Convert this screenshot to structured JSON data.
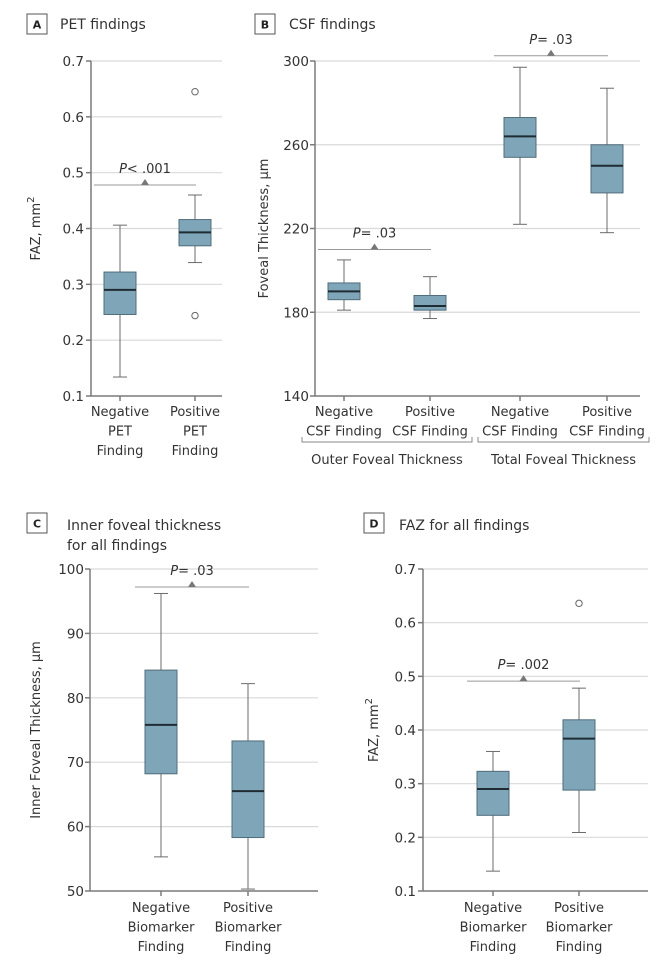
{
  "chart_data": [
    {
      "panel": "A",
      "type": "box",
      "title": "PET findings",
      "ylabel": "FAZ, mm²",
      "ylim": [
        0.1,
        0.7
      ],
      "yticks": [
        "0.1",
        "0.2",
        "0.3",
        "0.4",
        "0.5",
        "0.6",
        "0.7"
      ],
      "grid": true,
      "categories": [
        [
          "Negative",
          "PET",
          "Finding"
        ],
        [
          "Positive",
          "PET",
          "Finding"
        ]
      ],
      "boxes": [
        {
          "whisker_low": 0.134,
          "q1": 0.246,
          "median": 0.29,
          "q3": 0.322,
          "whisker_high": 0.406,
          "outliers": []
        },
        {
          "whisker_low": 0.339,
          "q1": 0.369,
          "median": 0.393,
          "q3": 0.416,
          "whisker_high": 0.46,
          "outliers": [
            0.645,
            0.244
          ]
        }
      ],
      "comparisons": [
        {
          "between": [
            0,
            1
          ],
          "p_prefix": "P",
          "p_text": "< .001",
          "y": 0.478
        }
      ]
    },
    {
      "panel": "B",
      "type": "box",
      "title": "CSF findings",
      "ylabel": "Foveal Thickness, µm",
      "ylim": [
        140,
        300
      ],
      "yticks": [
        "140",
        "180",
        "220",
        "260",
        "300"
      ],
      "grid": true,
      "categories": [
        [
          "Negative",
          "CSF Finding"
        ],
        [
          "Positive",
          "CSF Finding"
        ],
        [
          "Negative",
          "CSF Finding"
        ],
        [
          "Positive",
          "CSF Finding"
        ]
      ],
      "groups": [
        {
          "label": "Outer Foveal Thickness",
          "members": [
            0,
            1
          ]
        },
        {
          "label": "Total Foveal Thickness",
          "members": [
            2,
            3
          ]
        }
      ],
      "boxes": [
        {
          "whisker_low": 181,
          "q1": 186,
          "median": 190,
          "q3": 194,
          "whisker_high": 205,
          "outliers": []
        },
        {
          "whisker_low": 177,
          "q1": 181,
          "median": 183,
          "q3": 188,
          "whisker_high": 197,
          "outliers": []
        },
        {
          "whisker_low": 222,
          "q1": 254,
          "median": 264,
          "q3": 273,
          "whisker_high": 297,
          "outliers": []
        },
        {
          "whisker_low": 218,
          "q1": 237,
          "median": 250,
          "q3": 260,
          "whisker_high": 287,
          "outliers": []
        }
      ],
      "comparisons": [
        {
          "between": [
            0,
            1
          ],
          "p_prefix": "P",
          "p_text": "= .03",
          "y": 210
        },
        {
          "between": [
            2,
            3
          ],
          "p_prefix": "P",
          "p_text": "= .03",
          "y": 302.5
        }
      ]
    },
    {
      "panel": "C",
      "type": "box",
      "title": "Inner foveal thickness for all findings",
      "title_lines": [
        "Inner foveal thickness",
        "for all findings"
      ],
      "ylabel": "Inner Foveal Thickness, µm",
      "ylim": [
        50,
        100
      ],
      "yticks": [
        "50",
        "60",
        "70",
        "80",
        "90",
        "100"
      ],
      "grid": true,
      "categories": [
        [
          "Negative",
          "Biomarker",
          "Finding"
        ],
        [
          "Positive",
          "Biomarker",
          "Finding"
        ]
      ],
      "boxes": [
        {
          "whisker_low": 55.3,
          "q1": 68.2,
          "median": 75.8,
          "q3": 84.3,
          "whisker_high": 96.2,
          "outliers": []
        },
        {
          "whisker_low": 50.3,
          "q1": 58.3,
          "median": 65.5,
          "q3": 73.3,
          "whisker_high": 82.2,
          "outliers": []
        }
      ],
      "comparisons": [
        {
          "between": [
            0,
            1
          ],
          "p_prefix": "P",
          "p_text": "= .03",
          "y": 97.2
        }
      ]
    },
    {
      "panel": "D",
      "type": "box",
      "title": "FAZ for all findings",
      "ylabel": "FAZ, mm²",
      "ylim": [
        0.1,
        0.7
      ],
      "yticks": [
        "0.1",
        "0.2",
        "0.3",
        "0.4",
        "0.5",
        "0.6",
        "0.7"
      ],
      "grid": true,
      "categories": [
        [
          "Negative",
          "Biomarker",
          "Finding"
        ],
        [
          "Positive",
          "Biomarker",
          "Finding"
        ]
      ],
      "boxes": [
        {
          "whisker_low": 0.137,
          "q1": 0.241,
          "median": 0.29,
          "q3": 0.323,
          "whisker_high": 0.36,
          "outliers": []
        },
        {
          "whisker_low": 0.209,
          "q1": 0.288,
          "median": 0.384,
          "q3": 0.419,
          "whisker_high": 0.478,
          "outliers": [
            0.636
          ]
        }
      ],
      "comparisons": [
        {
          "between": [
            0,
            1
          ],
          "p_prefix": "P",
          "p_text": "= .002",
          "y": 0.491
        }
      ]
    }
  ],
  "colors": {
    "box_fill": "#7fa5b8",
    "box_stroke": "#4f6d7b",
    "median": "#1f2d33",
    "grid": "#d9d9d9"
  }
}
